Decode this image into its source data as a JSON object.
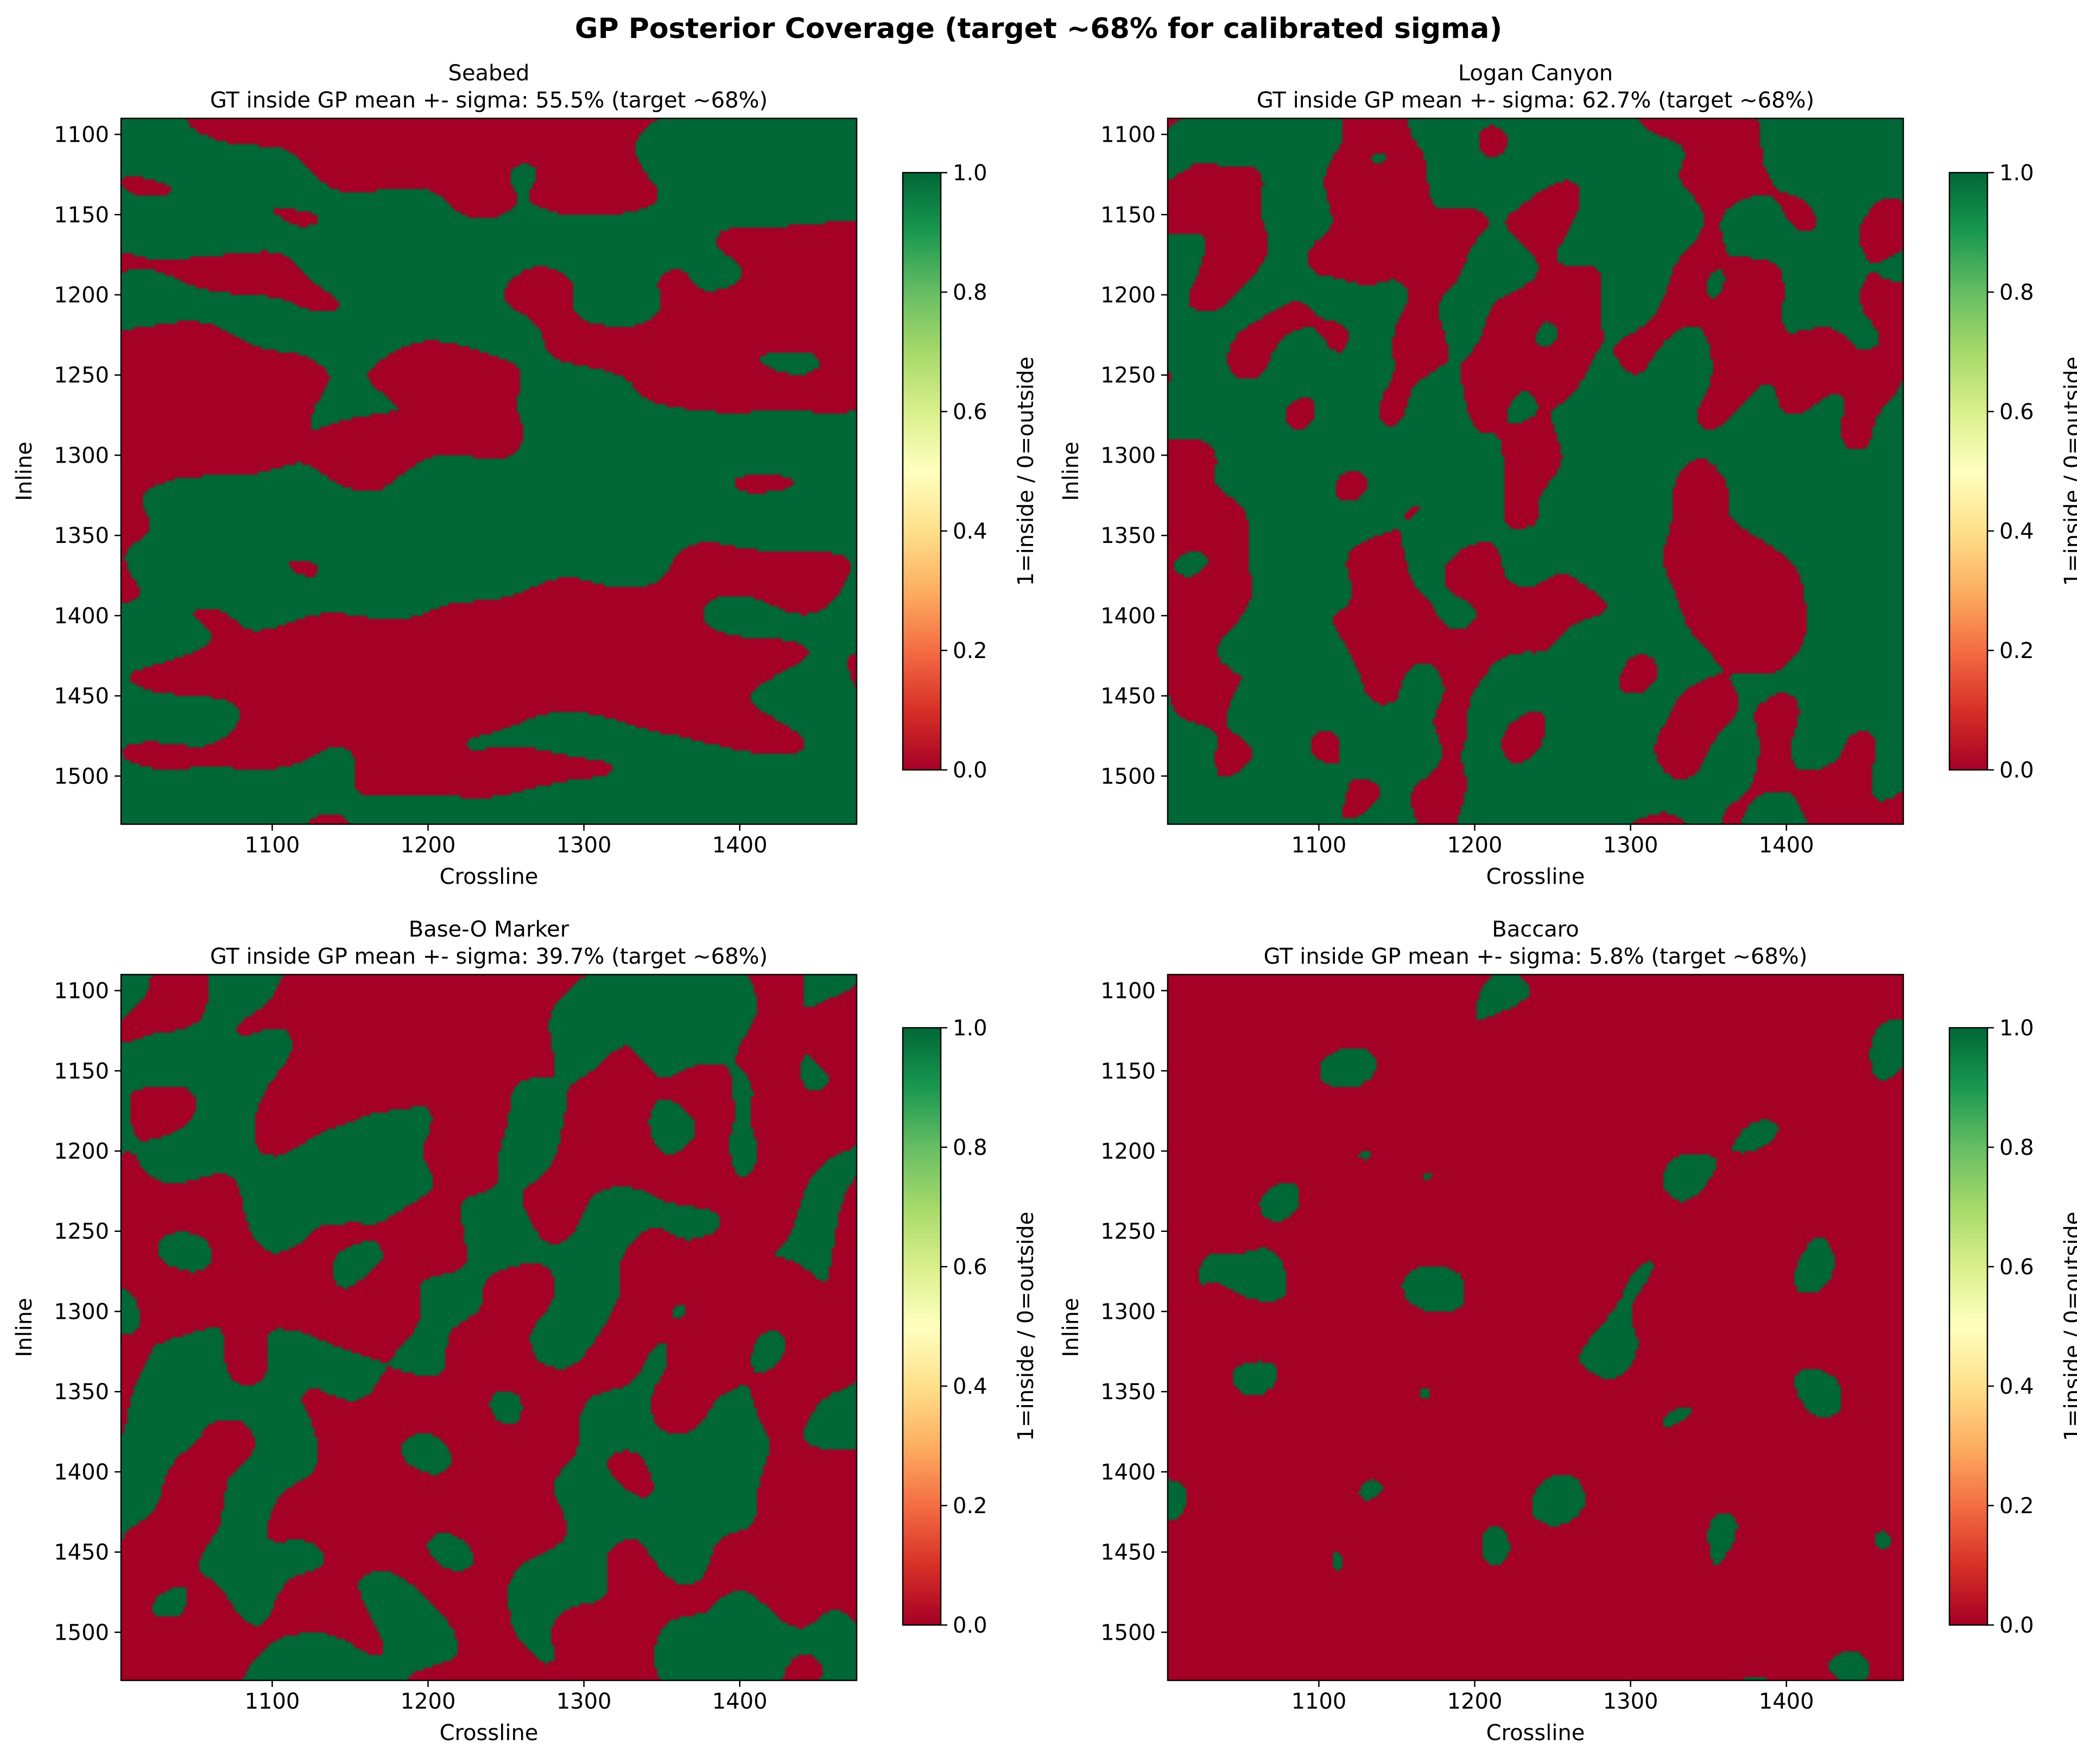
{
  "figure": {
    "title": "GP Posterior Coverage  (target ~68% for calibrated sigma)"
  },
  "colors": {
    "inside": "#006837",
    "outside": "#a50026",
    "colormap": [
      "#a50026",
      "#d73027",
      "#f46d43",
      "#fdae61",
      "#fee08b",
      "#ffffbf",
      "#d9ef8b",
      "#a6d96a",
      "#66bd63",
      "#1a9850",
      "#006837"
    ]
  },
  "chart_data": [
    {
      "type": "heatmap",
      "name": "Seabed",
      "title": "Seabed",
      "subtitle": "GT inside GP mean +- sigma: 55.5%   (target ~68%)",
      "coverage_percent": 55.5,
      "xlabel": "Crossline",
      "ylabel": "Inline",
      "xlim": [
        1003,
        1475
      ],
      "ylim": [
        1530,
        1090
      ],
      "xticks": [
        1100,
        1200,
        1300,
        1400
      ],
      "yticks": [
        1100,
        1150,
        1200,
        1250,
        1300,
        1350,
        1400,
        1450,
        1500
      ],
      "colorbar": {
        "label": "1=inside / 0=outside",
        "range": [
          0.0,
          1.0
        ],
        "ticks": [
          "0.0",
          "0.2",
          "0.4",
          "0.6",
          "0.8",
          "1.0"
        ],
        "colormap": "RdYlGn"
      },
      "values": "binary: 1 = ground truth inside GP mean +- sigma, 0 = outside"
    },
    {
      "type": "heatmap",
      "name": "Logan Canyon",
      "title": "Logan Canyon",
      "subtitle": "GT inside GP mean +- sigma: 62.7%   (target ~68%)",
      "coverage_percent": 62.7,
      "xlabel": "Crossline",
      "ylabel": "Inline",
      "xlim": [
        1003,
        1475
      ],
      "ylim": [
        1530,
        1090
      ],
      "xticks": [
        1100,
        1200,
        1300,
        1400
      ],
      "yticks": [
        1100,
        1150,
        1200,
        1250,
        1300,
        1350,
        1400,
        1450,
        1500
      ],
      "colorbar": {
        "label": "1=inside / 0=outside",
        "range": [
          0.0,
          1.0
        ],
        "ticks": [
          "0.0",
          "0.2",
          "0.4",
          "0.6",
          "0.8",
          "1.0"
        ],
        "colormap": "RdYlGn"
      },
      "values": "binary: 1 = ground truth inside GP mean +- sigma, 0 = outside"
    },
    {
      "type": "heatmap",
      "name": "Base-O Marker",
      "title": "Base-O Marker",
      "subtitle": "GT inside GP mean +- sigma: 39.7%   (target ~68%)",
      "coverage_percent": 39.7,
      "xlabel": "Crossline",
      "ylabel": "Inline",
      "xlim": [
        1003,
        1475
      ],
      "ylim": [
        1530,
        1090
      ],
      "xticks": [
        1100,
        1200,
        1300,
        1400
      ],
      "yticks": [
        1100,
        1150,
        1200,
        1250,
        1300,
        1350,
        1400,
        1450,
        1500
      ],
      "colorbar": {
        "label": "1=inside / 0=outside",
        "range": [
          0.0,
          1.0
        ],
        "ticks": [
          "0.0",
          "0.2",
          "0.4",
          "0.6",
          "0.8",
          "1.0"
        ],
        "colormap": "RdYlGn"
      },
      "values": "binary: 1 = ground truth inside GP mean +- sigma, 0 = outside"
    },
    {
      "type": "heatmap",
      "name": "Baccaro",
      "title": "Baccaro",
      "subtitle": "GT inside GP mean +- sigma: 5.8%   (target ~68%)",
      "coverage_percent": 5.8,
      "xlabel": "Crossline",
      "ylabel": "Inline",
      "xlim": [
        1003,
        1475
      ],
      "ylim": [
        1530,
        1090
      ],
      "xticks": [
        1100,
        1200,
        1300,
        1400
      ],
      "yticks": [
        1100,
        1150,
        1200,
        1250,
        1300,
        1350,
        1400,
        1450,
        1500
      ],
      "colorbar": {
        "label": "1=inside / 0=outside",
        "range": [
          0.0,
          1.0
        ],
        "ticks": [
          "0.0",
          "0.2",
          "0.4",
          "0.6",
          "0.8",
          "1.0"
        ],
        "colormap": "RdYlGn"
      },
      "values": "binary: 1 = ground truth inside GP mean +- sigma, 0 = outside"
    }
  ]
}
